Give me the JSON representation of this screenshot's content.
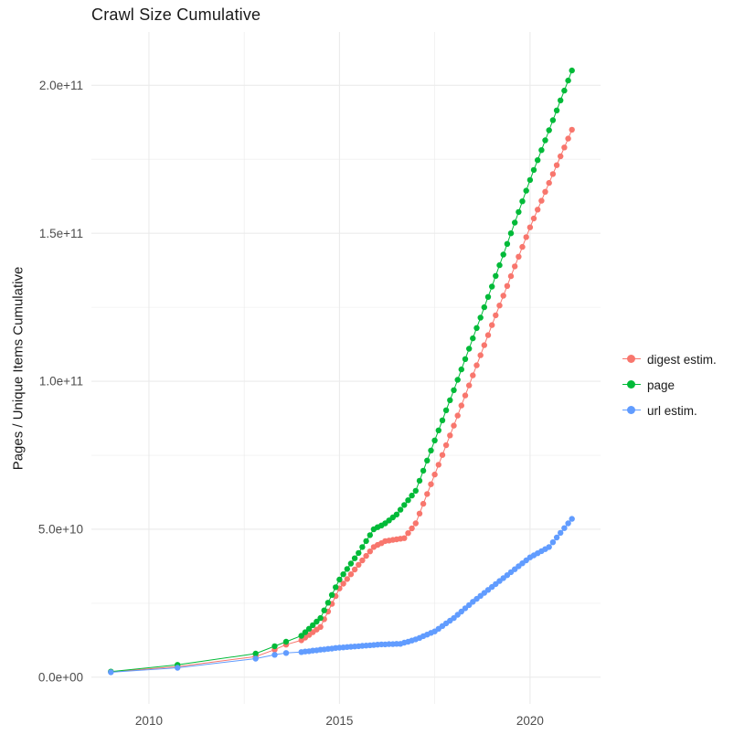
{
  "chart_data": {
    "type": "line",
    "title": "Crawl Size Cumulative",
    "xlabel": "",
    "ylabel": "Pages / Unique Items Cumulative",
    "value_scale_note": "series point values are in billions (1e9) of pages/items",
    "xticks": {
      "values": [
        2010,
        2015,
        2020
      ],
      "labels": [
        "2010",
        "2015",
        "2020"
      ]
    },
    "yticks": {
      "values": [
        0,
        50,
        100,
        150,
        200
      ],
      "labels": [
        "0.0e+00",
        "5.0e+10",
        "1.0e+11",
        "1.5e+11",
        "2.0e+11"
      ]
    },
    "layout": {
      "x_range": [
        2008.49,
        2021.85
      ],
      "y_range": [
        -9,
        218
      ],
      "x_minor": [
        2012.5,
        2017.5
      ],
      "y_minor": [
        25,
        75,
        125,
        175
      ],
      "grid": "on",
      "legend_position": "right"
    },
    "style": {
      "grid_color": "#EBEBEB",
      "tick_color": "#4D4D4D",
      "background": "#FFFFFF"
    },
    "series": [
      {
        "id": "digest",
        "name": "digest estim.",
        "color": "#F8766D",
        "points": [
          [
            2009.0,
            1.8
          ],
          [
            2010.75,
            3.6
          ],
          [
            2012.8,
            7.0
          ],
          [
            2013.3,
            9.3
          ],
          [
            2013.6,
            11.0
          ],
          [
            2014.0,
            12.5
          ],
          [
            2014.1,
            13.4
          ],
          [
            2014.2,
            14.3
          ],
          [
            2014.3,
            15.2
          ],
          [
            2014.4,
            16.1
          ],
          [
            2014.5,
            17.0
          ],
          [
            2014.6,
            19.6
          ],
          [
            2014.7,
            22.2
          ],
          [
            2014.8,
            24.8
          ],
          [
            2014.9,
            27.4
          ],
          [
            2015.0,
            30.0
          ],
          [
            2015.1,
            31.6
          ],
          [
            2015.2,
            33.2
          ],
          [
            2015.3,
            34.8
          ],
          [
            2015.4,
            36.4
          ],
          [
            2015.5,
            38.0
          ],
          [
            2015.6,
            39.5
          ],
          [
            2015.7,
            41.0
          ],
          [
            2015.8,
            42.5
          ],
          [
            2015.9,
            44.0
          ],
          [
            2016.0,
            44.7
          ],
          [
            2016.1,
            45.3
          ],
          [
            2016.2,
            46.0
          ],
          [
            2016.3,
            46.2
          ],
          [
            2016.4,
            46.4
          ],
          [
            2016.5,
            46.6
          ],
          [
            2016.6,
            46.8
          ],
          [
            2016.7,
            47.0
          ],
          [
            2016.8,
            48.7
          ],
          [
            2016.9,
            50.3
          ],
          [
            2017.0,
            52.0
          ],
          [
            2017.1,
            55.3
          ],
          [
            2017.2,
            58.6
          ],
          [
            2017.3,
            61.9
          ],
          [
            2017.4,
            65.2
          ],
          [
            2017.5,
            68.5
          ],
          [
            2017.6,
            71.8
          ],
          [
            2017.7,
            75.1
          ],
          [
            2017.8,
            78.4
          ],
          [
            2017.9,
            81.7
          ],
          [
            2018.0,
            85.0
          ],
          [
            2018.1,
            88.4
          ],
          [
            2018.2,
            91.8
          ],
          [
            2018.3,
            95.2
          ],
          [
            2018.4,
            98.6
          ],
          [
            2018.5,
            102.0
          ],
          [
            2018.6,
            105.4
          ],
          [
            2018.7,
            108.8
          ],
          [
            2018.8,
            112.2
          ],
          [
            2018.9,
            115.6
          ],
          [
            2019.0,
            119.0
          ],
          [
            2019.1,
            122.3
          ],
          [
            2019.2,
            125.6
          ],
          [
            2019.3,
            128.9
          ],
          [
            2019.4,
            132.2
          ],
          [
            2019.5,
            135.5
          ],
          [
            2019.6,
            138.8
          ],
          [
            2019.7,
            142.1
          ],
          [
            2019.8,
            145.4
          ],
          [
            2019.9,
            148.7
          ],
          [
            2020.0,
            152.0
          ],
          [
            2020.1,
            155.0
          ],
          [
            2020.2,
            158.0
          ],
          [
            2020.3,
            161.0
          ],
          [
            2020.4,
            164.0
          ],
          [
            2020.5,
            167.0
          ],
          [
            2020.6,
            170.0
          ],
          [
            2020.7,
            173.0
          ],
          [
            2020.8,
            176.0
          ],
          [
            2020.9,
            179.0
          ],
          [
            2021.0,
            182.0
          ],
          [
            2021.1,
            185.0
          ]
        ]
      },
      {
        "id": "page",
        "name": "page",
        "color": "#00BA38",
        "points": [
          [
            2009.0,
            1.9
          ],
          [
            2010.75,
            4.2
          ],
          [
            2012.8,
            8.0
          ],
          [
            2013.3,
            10.5
          ],
          [
            2013.6,
            12.0
          ],
          [
            2014.0,
            14.0
          ],
          [
            2014.1,
            15.2
          ],
          [
            2014.2,
            16.4
          ],
          [
            2014.3,
            17.6
          ],
          [
            2014.4,
            18.8
          ],
          [
            2014.5,
            20.0
          ],
          [
            2014.6,
            22.6
          ],
          [
            2014.7,
            25.2
          ],
          [
            2014.8,
            27.8
          ],
          [
            2014.9,
            30.4
          ],
          [
            2015.0,
            33.0
          ],
          [
            2015.1,
            34.8
          ],
          [
            2015.2,
            36.6
          ],
          [
            2015.3,
            38.4
          ],
          [
            2015.4,
            40.2
          ],
          [
            2015.5,
            42.0
          ],
          [
            2015.6,
            44.0
          ],
          [
            2015.7,
            46.0
          ],
          [
            2015.8,
            48.0
          ],
          [
            2015.9,
            50.0
          ],
          [
            2016.0,
            50.7
          ],
          [
            2016.1,
            51.3
          ],
          [
            2016.2,
            52.0
          ],
          [
            2016.3,
            53.0
          ],
          [
            2016.4,
            54.0
          ],
          [
            2016.5,
            55.0
          ],
          [
            2016.6,
            56.6
          ],
          [
            2016.7,
            58.2
          ],
          [
            2016.8,
            59.8
          ],
          [
            2016.9,
            61.4
          ],
          [
            2017.0,
            63.0
          ],
          [
            2017.1,
            66.4
          ],
          [
            2017.2,
            69.8
          ],
          [
            2017.3,
            73.2
          ],
          [
            2017.4,
            76.6
          ],
          [
            2017.5,
            80.0
          ],
          [
            2017.6,
            83.4
          ],
          [
            2017.7,
            86.8
          ],
          [
            2017.8,
            90.2
          ],
          [
            2017.9,
            93.6
          ],
          [
            2018.0,
            97.0
          ],
          [
            2018.1,
            100.5
          ],
          [
            2018.2,
            104.0
          ],
          [
            2018.3,
            107.5
          ],
          [
            2018.4,
            111.0
          ],
          [
            2018.5,
            114.5
          ],
          [
            2018.6,
            118.0
          ],
          [
            2018.7,
            121.5
          ],
          [
            2018.8,
            125.0
          ],
          [
            2018.9,
            128.5
          ],
          [
            2019.0,
            132.0
          ],
          [
            2019.1,
            135.6
          ],
          [
            2019.2,
            139.2
          ],
          [
            2019.3,
            142.8
          ],
          [
            2019.4,
            146.4
          ],
          [
            2019.5,
            150.0
          ],
          [
            2019.6,
            153.6
          ],
          [
            2019.7,
            157.2
          ],
          [
            2019.8,
            160.8
          ],
          [
            2019.9,
            164.4
          ],
          [
            2020.0,
            168.0
          ],
          [
            2020.1,
            171.4
          ],
          [
            2020.2,
            174.7
          ],
          [
            2020.3,
            178.1
          ],
          [
            2020.4,
            181.4
          ],
          [
            2020.5,
            184.8
          ],
          [
            2020.6,
            188.2
          ],
          [
            2020.7,
            191.5
          ],
          [
            2020.8,
            194.9
          ],
          [
            2020.9,
            198.2
          ],
          [
            2021.0,
            201.6
          ],
          [
            2021.1,
            205.0
          ]
        ]
      },
      {
        "id": "url",
        "name": "url estim.",
        "color": "#619CFF",
        "points": [
          [
            2009.0,
            1.7
          ],
          [
            2010.75,
            3.2
          ],
          [
            2012.8,
            6.3
          ],
          [
            2013.3,
            7.6
          ],
          [
            2013.6,
            8.2
          ],
          [
            2014.0,
            8.5
          ],
          [
            2014.1,
            8.7
          ],
          [
            2014.2,
            8.8
          ],
          [
            2014.3,
            9.0
          ],
          [
            2014.4,
            9.1
          ],
          [
            2014.5,
            9.3
          ],
          [
            2014.6,
            9.4
          ],
          [
            2014.7,
            9.6
          ],
          [
            2014.8,
            9.7
          ],
          [
            2014.9,
            9.9
          ],
          [
            2015.0,
            10.0
          ],
          [
            2015.1,
            10.1
          ],
          [
            2015.2,
            10.2
          ],
          [
            2015.3,
            10.3
          ],
          [
            2015.4,
            10.4
          ],
          [
            2015.5,
            10.5
          ],
          [
            2015.6,
            10.6
          ],
          [
            2015.7,
            10.7
          ],
          [
            2015.8,
            10.8
          ],
          [
            2015.9,
            10.9
          ],
          [
            2016.0,
            11.0
          ],
          [
            2016.1,
            11.1
          ],
          [
            2016.2,
            11.1
          ],
          [
            2016.3,
            11.2
          ],
          [
            2016.4,
            11.2
          ],
          [
            2016.5,
            11.3
          ],
          [
            2016.6,
            11.3
          ],
          [
            2016.7,
            11.7
          ],
          [
            2016.8,
            12.0
          ],
          [
            2016.9,
            12.4
          ],
          [
            2017.0,
            12.8
          ],
          [
            2017.1,
            13.3
          ],
          [
            2017.2,
            13.9
          ],
          [
            2017.3,
            14.4
          ],
          [
            2017.4,
            15.0
          ],
          [
            2017.5,
            15.5
          ],
          [
            2017.6,
            16.4
          ],
          [
            2017.7,
            17.3
          ],
          [
            2017.8,
            18.2
          ],
          [
            2017.9,
            19.1
          ],
          [
            2018.0,
            20.0
          ],
          [
            2018.1,
            21.1
          ],
          [
            2018.2,
            22.2
          ],
          [
            2018.3,
            23.3
          ],
          [
            2018.4,
            24.4
          ],
          [
            2018.5,
            25.5
          ],
          [
            2018.6,
            26.5
          ],
          [
            2018.7,
            27.5
          ],
          [
            2018.8,
            28.5
          ],
          [
            2018.9,
            29.5
          ],
          [
            2019.0,
            30.5
          ],
          [
            2019.1,
            31.5
          ],
          [
            2019.2,
            32.5
          ],
          [
            2019.3,
            33.5
          ],
          [
            2019.4,
            34.5
          ],
          [
            2019.5,
            35.5
          ],
          [
            2019.6,
            36.5
          ],
          [
            2019.7,
            37.5
          ],
          [
            2019.8,
            38.5
          ],
          [
            2019.9,
            39.5
          ],
          [
            2020.0,
            40.5
          ],
          [
            2020.1,
            41.2
          ],
          [
            2020.2,
            41.9
          ],
          [
            2020.3,
            42.6
          ],
          [
            2020.4,
            43.3
          ],
          [
            2020.5,
            44.0
          ],
          [
            2020.6,
            45.6
          ],
          [
            2020.7,
            47.2
          ],
          [
            2020.8,
            48.8
          ],
          [
            2020.9,
            50.4
          ],
          [
            2021.0,
            52.0
          ],
          [
            2021.1,
            53.5
          ]
        ]
      }
    ]
  }
}
